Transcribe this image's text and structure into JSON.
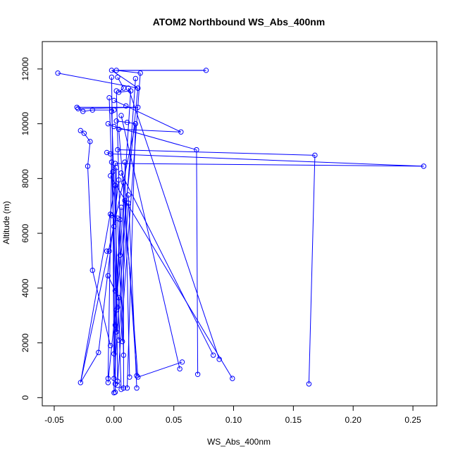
{
  "chart_data": {
    "type": "line",
    "title": "ATOM2 Northbound WS_Abs_400nm",
    "xlabel": "WS_Abs_400nm",
    "ylabel": "Altitude (m)",
    "xlim": [
      -0.06,
      0.27
    ],
    "ylim": [
      -300,
      13000
    ],
    "x_ticks": [
      -0.05,
      0.0,
      0.05,
      0.1,
      0.15,
      0.2,
      0.25
    ],
    "x_tick_labels": [
      "-0.05",
      "0.00",
      "0.05",
      "0.10",
      "0.15",
      "0.20",
      "0.25"
    ],
    "y_ticks": [
      0,
      2000,
      4000,
      6000,
      8000,
      10000,
      12000
    ],
    "y_tick_labels": [
      "0",
      "2000",
      "4000",
      "6000",
      "8000",
      "10000",
      "12000"
    ],
    "grid": false,
    "marker": "open-circle",
    "series": [
      {
        "color": "#0000ff",
        "points": [
          [
            -0.047,
            11850
          ],
          [
            0.02,
            11300
          ],
          [
            -0.002,
            11950
          ],
          [
            0.077,
            11950
          ],
          [
            0.002,
            11950
          ],
          [
            0.022,
            11850
          ],
          [
            0.018,
            11650
          ],
          [
            -0.002,
            11700
          ],
          [
            0.003,
            11700
          ],
          [
            0.012,
            11300
          ],
          [
            0.02,
            11300
          ],
          [
            0.002,
            11200
          ],
          [
            0.008,
            11300
          ],
          [
            0.004,
            11150
          ],
          [
            0.014,
            11200
          ],
          [
            -0.004,
            10950
          ],
          [
            0.0,
            10850
          ],
          [
            0.01,
            10650
          ],
          [
            -0.031,
            10600
          ],
          [
            0.02,
            10600
          ],
          [
            -0.03,
            10550
          ],
          [
            -0.026,
            10450
          ],
          [
            -0.018,
            10500
          ],
          [
            0.0,
            10500
          ],
          [
            -0.002,
            10450
          ],
          [
            0.006,
            10300
          ],
          [
            0.002,
            10100
          ],
          [
            0.011,
            10050
          ],
          [
            0.018,
            10000
          ],
          [
            -0.005,
            10000
          ],
          [
            0.0,
            9900
          ],
          [
            0.004,
            9800
          ],
          [
            0.056,
            9700
          ],
          [
            -0.028,
            9750
          ],
          [
            -0.025,
            9650
          ],
          [
            -0.02,
            9350
          ],
          [
            0.168,
            8850
          ],
          [
            0.003,
            9050
          ],
          [
            0.069,
            9050
          ],
          [
            -0.006,
            8950
          ],
          [
            -0.003,
            8900
          ],
          [
            0.259,
            8450
          ],
          [
            0.001,
            8550
          ],
          [
            -0.002,
            8600
          ],
          [
            -0.022,
            8450
          ],
          [
            0.009,
            8600
          ],
          [
            0.002,
            8400
          ],
          [
            -0.001,
            8250
          ],
          [
            0.006,
            8200
          ],
          [
            -0.003,
            8100
          ],
          [
            0.004,
            7950
          ],
          [
            0.008,
            7850
          ],
          [
            0.001,
            7750
          ],
          [
            0.012,
            7400
          ],
          [
            0.009,
            7200
          ],
          [
            0.012,
            7100
          ],
          [
            0.006,
            6950
          ],
          [
            -0.003,
            6700
          ],
          [
            -0.002,
            6650
          ],
          [
            0.003,
            6550
          ],
          [
            0.005,
            6500
          ],
          [
            0.0,
            6250
          ],
          [
            0.005,
            5200
          ],
          [
            -0.004,
            5350
          ],
          [
            -0.006,
            5350
          ],
          [
            -0.018,
            4650
          ],
          [
            -0.005,
            4450
          ],
          [
            0.001,
            3900
          ],
          [
            0.004,
            3650
          ],
          [
            0.003,
            3300
          ],
          [
            0.002,
            3200
          ],
          [
            0.001,
            2650
          ],
          [
            0.002,
            2400
          ],
          [
            0.004,
            2100
          ],
          [
            0.007,
            2050
          ],
          [
            -0.003,
            1900
          ],
          [
            -0.013,
            1650
          ],
          [
            0.0,
            1600
          ],
          [
            0.008,
            1550
          ],
          [
            0.083,
            1550
          ],
          [
            0.088,
            1400
          ],
          [
            0.057,
            1300
          ],
          [
            0.055,
            1050
          ],
          [
            0.07,
            850
          ],
          [
            0.019,
            800
          ],
          [
            0.02,
            750
          ],
          [
            0.013,
            750
          ],
          [
            0.099,
            700
          ],
          [
            0.0,
            700
          ],
          [
            -0.005,
            700
          ],
          [
            0.003,
            600
          ],
          [
            -0.028,
            550
          ],
          [
            -0.005,
            550
          ],
          [
            0.001,
            500
          ],
          [
            0.163,
            500
          ],
          [
            0.003,
            450
          ],
          [
            0.008,
            350
          ],
          [
            0.011,
            350
          ],
          [
            0.019,
            350
          ],
          [
            0.006,
            300
          ],
          [
            0.001,
            200
          ],
          [
            0.0,
            180
          ]
        ],
        "segments": [
          [
            0,
            1
          ],
          [
            1,
            2
          ],
          [
            2,
            3
          ],
          [
            3,
            4
          ],
          [
            4,
            5
          ],
          [
            5,
            90
          ],
          [
            6,
            88
          ],
          [
            7,
            93
          ],
          [
            8,
            12
          ],
          [
            9,
            80
          ],
          [
            10,
            92
          ],
          [
            11,
            78
          ],
          [
            12,
            13
          ],
          [
            13,
            14
          ],
          [
            14,
            62
          ],
          [
            15,
            70
          ],
          [
            16,
            17
          ],
          [
            17,
            32
          ],
          [
            18,
            19
          ],
          [
            19,
            20
          ],
          [
            20,
            21
          ],
          [
            21,
            22
          ],
          [
            22,
            23
          ],
          [
            23,
            24
          ],
          [
            24,
            99
          ],
          [
            25,
            82
          ],
          [
            26,
            27
          ],
          [
            27,
            28
          ],
          [
            28,
            97
          ],
          [
            29,
            30
          ],
          [
            30,
            38
          ],
          [
            31,
            85
          ],
          [
            32,
            31
          ],
          [
            33,
            34
          ],
          [
            34,
            35
          ],
          [
            35,
            44
          ],
          [
            36,
            94
          ],
          [
            37,
            36
          ],
          [
            38,
            83
          ],
          [
            39,
            40
          ],
          [
            40,
            41
          ],
          [
            41,
            42
          ],
          [
            42,
            95
          ],
          [
            43,
            89
          ],
          [
            44,
            65
          ],
          [
            45,
            86
          ],
          [
            46,
            100
          ],
          [
            47,
            101
          ],
          [
            48,
            79
          ],
          [
            49,
            87
          ],
          [
            50,
            76
          ],
          [
            51,
            96
          ],
          [
            52,
            91
          ],
          [
            53,
            98
          ],
          [
            54,
            84
          ],
          [
            55,
            73
          ],
          [
            56,
            77
          ],
          [
            57,
            58
          ],
          [
            58,
            59
          ],
          [
            59,
            74
          ],
          [
            60,
            71
          ],
          [
            61,
            72
          ],
          [
            63,
            64
          ],
          [
            65,
            75
          ],
          [
            66,
            67
          ],
          [
            67,
            68
          ],
          [
            68,
            69
          ],
          [
            76,
            91
          ],
          [
            81,
            85
          ],
          [
            91,
            28
          ]
        ]
      }
    ]
  }
}
